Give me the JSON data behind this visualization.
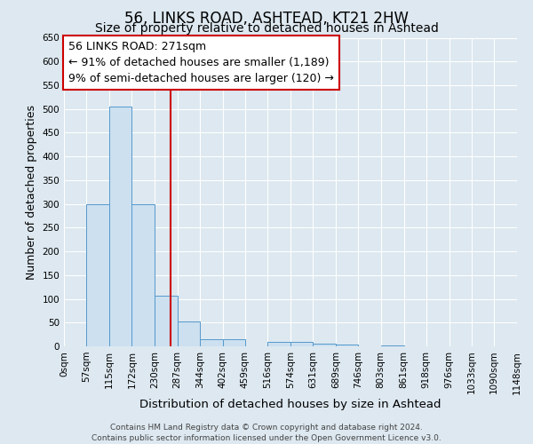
{
  "title": "56, LINKS ROAD, ASHTEAD, KT21 2HW",
  "subtitle": "Size of property relative to detached houses in Ashtead",
  "xlabel": "Distribution of detached houses by size in Ashtead",
  "ylabel": "Number of detached properties",
  "bin_edges": [
    0,
    57,
    115,
    172,
    230,
    287,
    344,
    402,
    459,
    516,
    574,
    631,
    689,
    746,
    803,
    861,
    918,
    976,
    1033,
    1090,
    1148
  ],
  "bar_heights": [
    0,
    300,
    505,
    300,
    107,
    52,
    15,
    15,
    0,
    10,
    10,
    5,
    3,
    0,
    2,
    0,
    0,
    0,
    0,
    0
  ],
  "bar_facecolor": "#cce0f0",
  "bar_edgecolor": "#5599cc",
  "vline_x": 271,
  "vline_color": "#cc0000",
  "ylim": [
    0,
    650
  ],
  "yticks": [
    0,
    50,
    100,
    150,
    200,
    250,
    300,
    350,
    400,
    450,
    500,
    550,
    600,
    650
  ],
  "annotation_line1": "56 LINKS ROAD: 271sqm",
  "annotation_line2": "← 91% of detached houses are smaller (1,189)",
  "annotation_line3": "9% of semi-detached houses are larger (120) →",
  "annotation_box_color": "#ffffff",
  "annotation_box_edge": "#cc0000",
  "background_color": "#dde8f0",
  "footer_line1": "Contains HM Land Registry data © Crown copyright and database right 2024.",
  "footer_line2": "Contains public sector information licensed under the Open Government Licence v3.0.",
  "title_fontsize": 12,
  "subtitle_fontsize": 10,
  "xlabel_fontsize": 9.5,
  "ylabel_fontsize": 9,
  "tick_fontsize": 7.5,
  "annotation_fontsize": 9,
  "footer_fontsize": 6.5
}
